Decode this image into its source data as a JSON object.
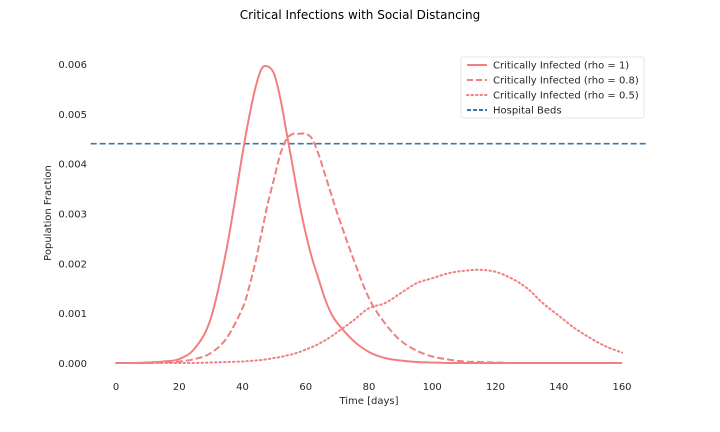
{
  "chart_data": {
    "type": "line",
    "title": "Critical Infections with Social Distancing",
    "xlabel": "Time [days]",
    "ylabel": "Population Fraction",
    "xlim": [
      -8,
      168
    ],
    "ylim": [
      -0.00015,
      0.0063
    ],
    "xticks": [
      0,
      20,
      40,
      60,
      80,
      100,
      120,
      140,
      160
    ],
    "xtick_labels": [
      "0",
      "20",
      "40",
      "60",
      "80",
      "100",
      "120",
      "140",
      "160"
    ],
    "yticks": [
      0,
      0.001,
      0.002,
      0.003,
      0.004,
      0.005,
      0.006
    ],
    "ytick_labels": [
      "0.000",
      "0.001",
      "0.002",
      "0.003",
      "0.004",
      "0.005",
      "0.006"
    ],
    "grid": false,
    "legend_position": "top-right",
    "x": [
      0,
      5,
      10,
      15,
      20,
      25,
      30,
      35,
      40,
      42,
      44,
      46,
      48,
      50,
      52,
      54,
      56,
      58,
      60,
      62,
      64,
      66,
      68,
      70,
      75,
      80,
      85,
      90,
      95,
      100,
      105,
      110,
      115,
      120,
      125,
      130,
      135,
      140,
      145,
      150,
      155,
      160
    ],
    "series": [
      {
        "name": "Critically Infected (rho = 1)",
        "color": "#f08080",
        "style": "solid",
        "values": [
          0,
          0,
          1e-05,
          3e-05,
          8e-05,
          0.0003,
          0.0009,
          0.0023,
          0.0042,
          0.0049,
          0.0055,
          0.0059,
          0.00595,
          0.0058,
          0.0053,
          0.0046,
          0.0039,
          0.0032,
          0.0026,
          0.0021,
          0.0017,
          0.0013,
          0.001,
          0.0008,
          0.00045,
          0.00022,
          0.0001,
          5e-05,
          2e-05,
          1e-05,
          0,
          0,
          0,
          0,
          0,
          0,
          0,
          0,
          0,
          0,
          0,
          0
        ]
      },
      {
        "name": "Critically Infected (rho = 0.8)",
        "color": "#f08080",
        "style": "dashed",
        "values": [
          0,
          0,
          0,
          1e-05,
          3e-05,
          8e-05,
          0.0002,
          0.0005,
          0.0011,
          0.0015,
          0.002,
          0.0026,
          0.0032,
          0.0037,
          0.0042,
          0.0045,
          0.0046,
          0.0046,
          0.0046,
          0.0045,
          0.0042,
          0.0038,
          0.0034,
          0.003,
          0.0021,
          0.0013,
          0.0008,
          0.00045,
          0.00025,
          0.00013,
          7e-05,
          3e-05,
          2e-05,
          1e-05,
          0,
          0,
          0,
          0,
          0,
          0,
          0,
          0
        ]
      },
      {
        "name": "Critically Infected (rho = 0.5)",
        "color": "#f08080",
        "style": "dotted",
        "values": [
          0,
          0,
          0,
          0,
          0,
          0,
          1e-05,
          2e-05,
          3e-05,
          4e-05,
          5e-05,
          6e-05,
          8e-05,
          0.0001,
          0.00012,
          0.00015,
          0.00018,
          0.00022,
          0.00027,
          0.00032,
          0.00038,
          0.00045,
          0.00053,
          0.00062,
          0.00085,
          0.0011,
          0.0012,
          0.0014,
          0.0016,
          0.0017,
          0.0018,
          0.00185,
          0.00187,
          0.00183,
          0.0017,
          0.0015,
          0.0012,
          0.00095,
          0.0007,
          0.0005,
          0.00033,
          0.00021
        ]
      }
    ],
    "hlines": [
      {
        "name": "Hospital Beds",
        "color": "#3778a8",
        "style": "dashed",
        "y": 0.0044
      }
    ]
  }
}
